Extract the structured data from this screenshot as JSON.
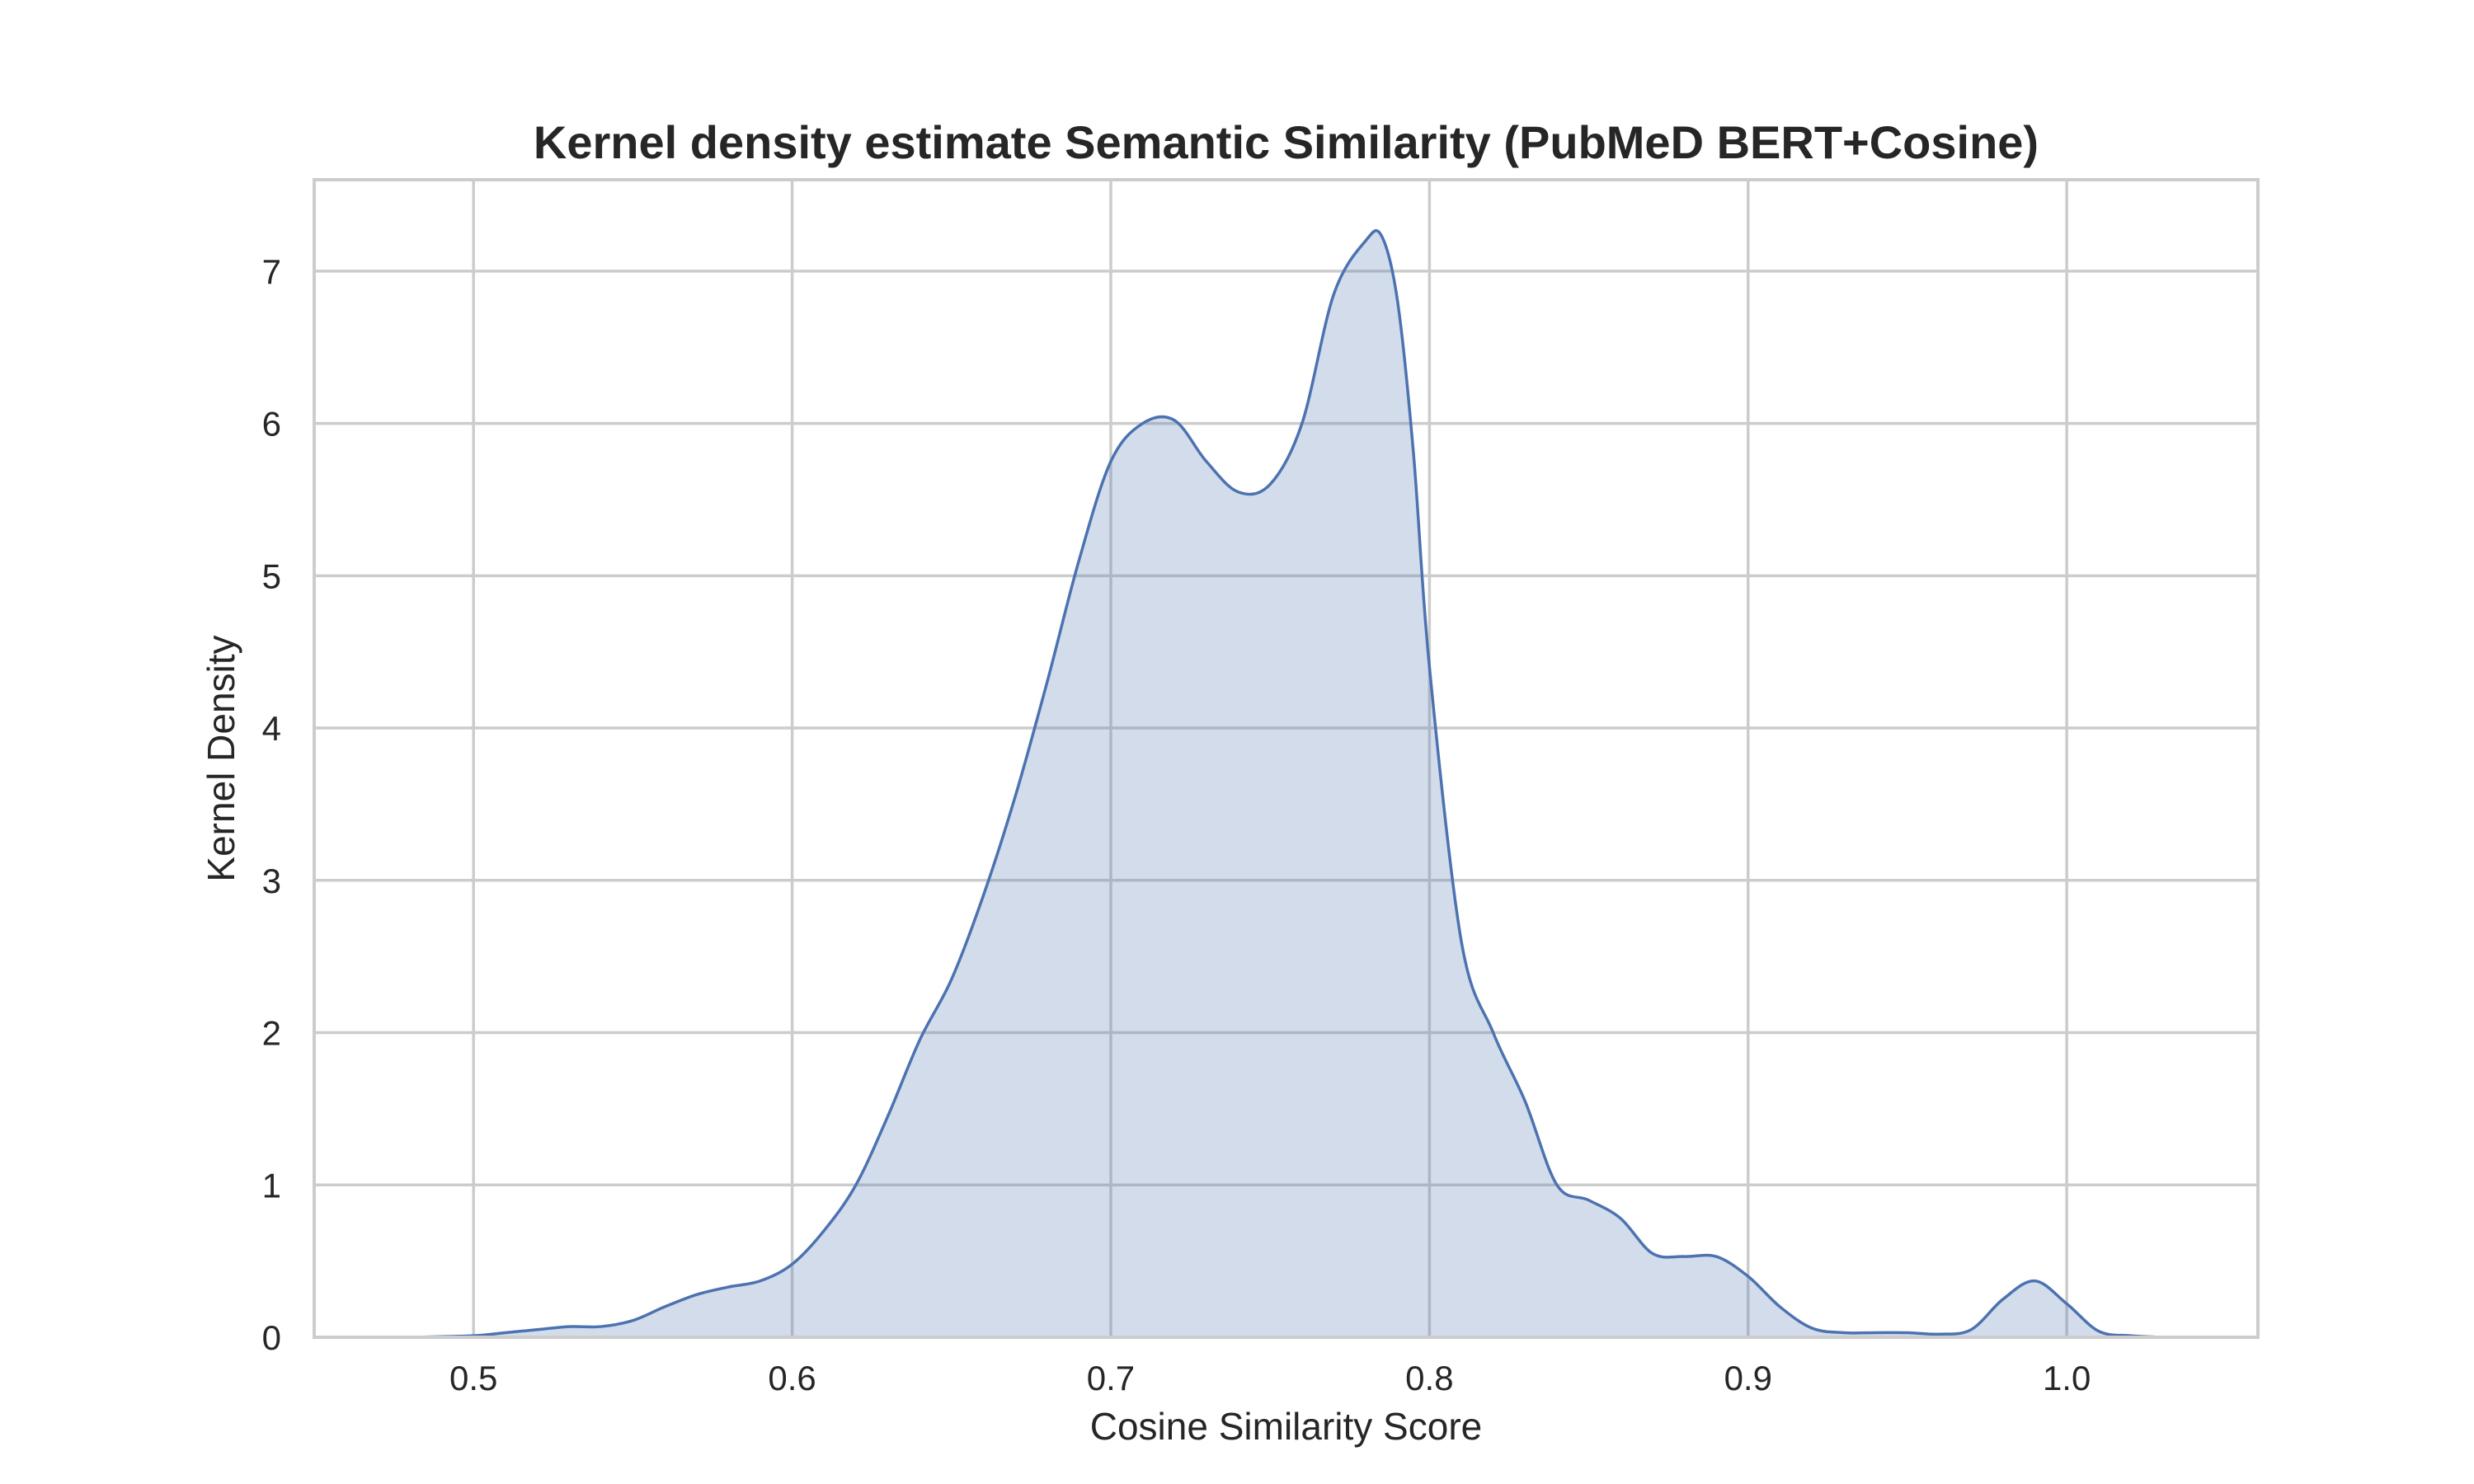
{
  "chart_data": {
    "type": "area",
    "title": "Kernel density estimate Semantic Similarity (PubMeD BERT+Cosine)",
    "xlabel": "Cosine Similarity Score",
    "ylabel": "Kernel Density",
    "xlim": [
      0.45,
      1.06
    ],
    "ylim": [
      0,
      7.6
    ],
    "xticks": [
      0.5,
      0.6,
      0.7,
      0.8,
      0.9,
      1.0
    ],
    "xtick_labels": [
      "0.5",
      "0.6",
      "0.7",
      "0.8",
      "0.9",
      "1.0"
    ],
    "yticks": [
      0,
      1,
      2,
      3,
      4,
      5,
      6,
      7
    ],
    "ytick_labels": [
      "0",
      "1",
      "2",
      "3",
      "4",
      "5",
      "6",
      "7"
    ],
    "grid": true,
    "series": [
      {
        "color": "#4c72b0",
        "x": [
          0.48,
          0.5,
          0.51,
          0.52,
          0.53,
          0.54,
          0.55,
          0.56,
          0.57,
          0.58,
          0.59,
          0.6,
          0.61,
          0.62,
          0.63,
          0.64,
          0.65,
          0.66,
          0.67,
          0.68,
          0.69,
          0.7,
          0.71,
          0.72,
          0.73,
          0.74,
          0.75,
          0.76,
          0.77,
          0.78,
          0.785,
          0.79,
          0.795,
          0.8,
          0.81,
          0.82,
          0.83,
          0.84,
          0.85,
          0.86,
          0.87,
          0.88,
          0.89,
          0.9,
          0.91,
          0.92,
          0.93,
          0.94,
          0.95,
          0.96,
          0.97,
          0.98,
          0.99,
          1.0,
          1.01,
          1.02,
          1.03
        ],
        "y": [
          0.0,
          0.01,
          0.03,
          0.05,
          0.07,
          0.07,
          0.11,
          0.2,
          0.28,
          0.33,
          0.37,
          0.48,
          0.7,
          1.0,
          1.45,
          1.95,
          2.35,
          2.9,
          3.55,
          4.3,
          5.1,
          5.75,
          6.0,
          6.02,
          5.75,
          5.55,
          5.6,
          6.0,
          6.85,
          7.2,
          7.23,
          6.8,
          5.8,
          4.4,
          2.6,
          2.0,
          1.55,
          1.0,
          0.9,
          0.78,
          0.55,
          0.53,
          0.53,
          0.4,
          0.2,
          0.06,
          0.03,
          0.03,
          0.03,
          0.02,
          0.05,
          0.25,
          0.37,
          0.22,
          0.04,
          0.01,
          0.0
        ]
      }
    ]
  }
}
